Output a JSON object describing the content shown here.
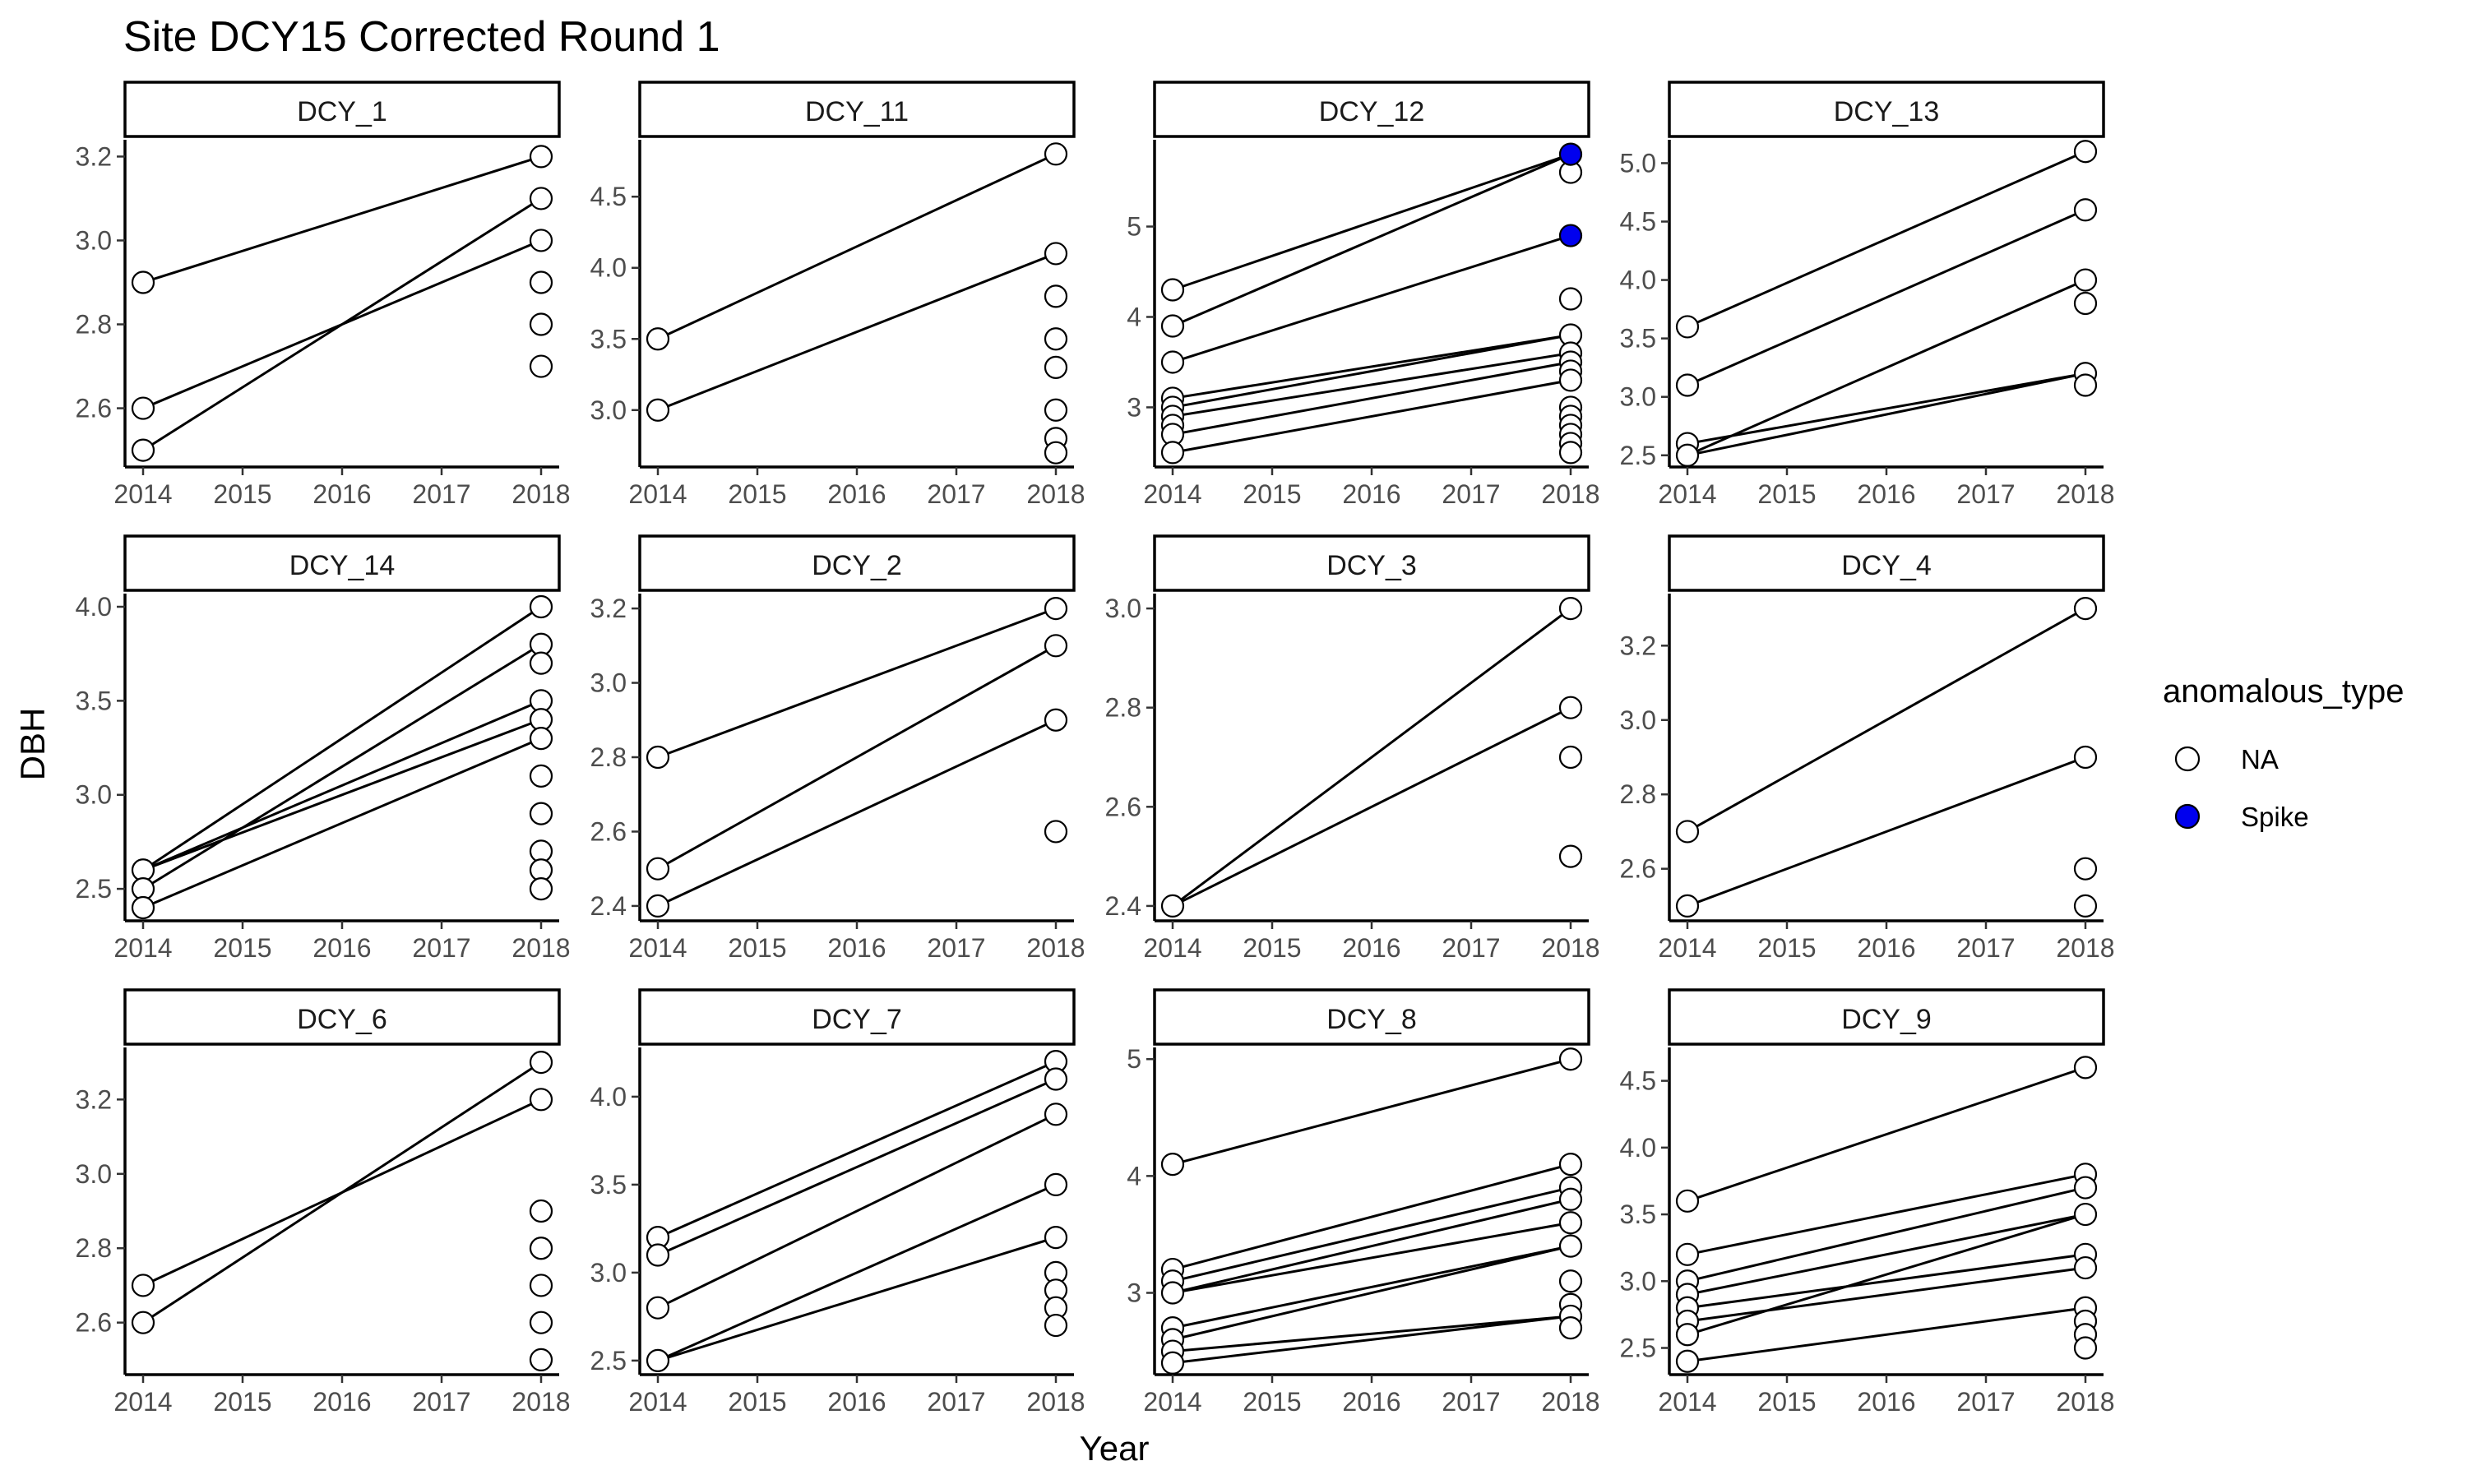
{
  "chart_data": {
    "type": "scatter",
    "title": "Site DCY15 Corrected Round 1",
    "xlabel": "Year",
    "ylabel": "DBH",
    "xlim": [
      2014,
      2018
    ],
    "x_ticks": [
      2014,
      2015,
      2016,
      2017,
      2018
    ],
    "grid": false,
    "legend": {
      "title": "anomalous_type",
      "position": "right",
      "entries": [
        {
          "label": "NA",
          "fill": "#ffffff"
        },
        {
          "label": "Spike",
          "fill": "#0000ee"
        }
      ]
    },
    "panels": [
      {
        "label": "DCY_1",
        "ylim": [
          2.46,
          3.24
        ],
        "y_ticks": [
          2.6,
          2.8,
          3.0,
          3.2
        ],
        "y_tick_labels": [
          "2.6",
          "2.8",
          "3.0",
          "3.2"
        ],
        "points": [
          {
            "x": 2014,
            "y": 2.9
          },
          {
            "x": 2014,
            "y": 2.6
          },
          {
            "x": 2014,
            "y": 2.5
          },
          {
            "x": 2018,
            "y": 3.2
          },
          {
            "x": 2018,
            "y": 3.1
          },
          {
            "x": 2018,
            "y": 3.0
          },
          {
            "x": 2018,
            "y": 2.9
          },
          {
            "x": 2018,
            "y": 2.8
          },
          {
            "x": 2018,
            "y": 2.7
          }
        ],
        "segments": [
          [
            2.9,
            3.2
          ],
          [
            2.6,
            3.0
          ],
          [
            2.5,
            3.1
          ]
        ]
      },
      {
        "label": "DCY_11",
        "ylim": [
          2.6,
          4.9
        ],
        "y_ticks": [
          3.0,
          3.5,
          4.0,
          4.5
        ],
        "y_tick_labels": [
          "3.0",
          "3.5",
          "4.0",
          "4.5"
        ],
        "points": [
          {
            "x": 2014,
            "y": 3.5
          },
          {
            "x": 2014,
            "y": 3.0
          },
          {
            "x": 2018,
            "y": 4.8
          },
          {
            "x": 2018,
            "y": 4.1
          },
          {
            "x": 2018,
            "y": 3.8
          },
          {
            "x": 2018,
            "y": 3.5
          },
          {
            "x": 2018,
            "y": 3.3
          },
          {
            "x": 2018,
            "y": 3.0
          },
          {
            "x": 2018,
            "y": 2.8
          },
          {
            "x": 2018,
            "y": 2.7
          }
        ],
        "segments": [
          [
            3.5,
            4.8
          ],
          [
            3.0,
            4.1
          ]
        ]
      },
      {
        "label": "DCY_12",
        "ylim": [
          2.34,
          5.96
        ],
        "y_ticks": [
          3,
          4,
          5
        ],
        "y_tick_labels": [
          "3",
          "4",
          "5"
        ],
        "points": [
          {
            "x": 2014,
            "y": 4.3
          },
          {
            "x": 2014,
            "y": 3.9
          },
          {
            "x": 2014,
            "y": 3.5
          },
          {
            "x": 2014,
            "y": 3.1
          },
          {
            "x": 2014,
            "y": 3.0
          },
          {
            "x": 2014,
            "y": 2.9
          },
          {
            "x": 2014,
            "y": 2.8
          },
          {
            "x": 2014,
            "y": 2.7
          },
          {
            "x": 2014,
            "y": 2.5
          },
          {
            "x": 2018,
            "y": 5.6
          },
          {
            "x": 2018,
            "y": 4.2
          },
          {
            "x": 2018,
            "y": 3.8
          },
          {
            "x": 2018,
            "y": 3.6
          },
          {
            "x": 2018,
            "y": 3.5
          },
          {
            "x": 2018,
            "y": 3.4
          },
          {
            "x": 2018,
            "y": 3.3
          },
          {
            "x": 2018,
            "y": 3.0
          },
          {
            "x": 2018,
            "y": 2.9
          },
          {
            "x": 2018,
            "y": 2.8
          },
          {
            "x": 2018,
            "y": 2.7
          },
          {
            "x": 2018,
            "y": 2.6
          },
          {
            "x": 2018,
            "y": 2.5
          },
          {
            "x": 2018,
            "y": 5.8,
            "anomalous_type": "Spike"
          },
          {
            "x": 2018,
            "y": 4.9,
            "anomalous_type": "Spike"
          }
        ],
        "segments": [
          [
            4.3,
            5.8
          ],
          [
            3.9,
            5.8
          ],
          [
            3.5,
            4.9
          ],
          [
            3.1,
            3.8
          ],
          [
            3.0,
            3.8
          ],
          [
            2.9,
            3.6
          ],
          [
            2.7,
            3.5
          ],
          [
            2.5,
            3.3
          ]
        ]
      },
      {
        "label": "DCY_13",
        "ylim": [
          2.4,
          5.2
        ],
        "y_ticks": [
          2.5,
          3.0,
          3.5,
          4.0,
          4.5,
          5.0
        ],
        "y_tick_labels": [
          "2.5",
          "3.0",
          "3.5",
          "4.0",
          "4.5",
          "5.0"
        ],
        "points": [
          {
            "x": 2014,
            "y": 3.6
          },
          {
            "x": 2014,
            "y": 3.1
          },
          {
            "x": 2014,
            "y": 2.6
          },
          {
            "x": 2014,
            "y": 2.5
          },
          {
            "x": 2018,
            "y": 5.1
          },
          {
            "x": 2018,
            "y": 4.6
          },
          {
            "x": 2018,
            "y": 4.0
          },
          {
            "x": 2018,
            "y": 3.8
          },
          {
            "x": 2018,
            "y": 3.2
          },
          {
            "x": 2018,
            "y": 3.1
          }
        ],
        "segments": [
          [
            3.6,
            5.1
          ],
          [
            3.1,
            4.6
          ],
          [
            2.5,
            4.0
          ],
          [
            2.6,
            3.2
          ],
          [
            2.5,
            3.2
          ]
        ]
      },
      {
        "label": "DCY_14",
        "ylim": [
          2.33,
          4.07
        ],
        "y_ticks": [
          2.5,
          3.0,
          3.5,
          4.0
        ],
        "y_tick_labels": [
          "2.5",
          "3.0",
          "3.5",
          "4.0"
        ],
        "points": [
          {
            "x": 2014,
            "y": 2.6
          },
          {
            "x": 2014,
            "y": 2.5
          },
          {
            "x": 2014,
            "y": 2.4
          },
          {
            "x": 2018,
            "y": 4.0
          },
          {
            "x": 2018,
            "y": 3.8
          },
          {
            "x": 2018,
            "y": 3.7
          },
          {
            "x": 2018,
            "y": 3.5
          },
          {
            "x": 2018,
            "y": 3.4
          },
          {
            "x": 2018,
            "y": 3.3
          },
          {
            "x": 2018,
            "y": 3.1
          },
          {
            "x": 2018,
            "y": 2.9
          },
          {
            "x": 2018,
            "y": 2.7
          },
          {
            "x": 2018,
            "y": 2.6
          },
          {
            "x": 2018,
            "y": 2.5
          }
        ],
        "segments": [
          [
            2.6,
            4.0
          ],
          [
            2.5,
            3.8
          ],
          [
            2.6,
            3.5
          ],
          [
            2.6,
            3.4
          ],
          [
            2.4,
            3.3
          ]
        ]
      },
      {
        "label": "DCY_2",
        "ylim": [
          2.36,
          3.24
        ],
        "y_ticks": [
          2.4,
          2.6,
          2.8,
          3.0,
          3.2
        ],
        "y_tick_labels": [
          "2.4",
          "2.6",
          "2.8",
          "3.0",
          "3.2"
        ],
        "points": [
          {
            "x": 2014,
            "y": 2.8
          },
          {
            "x": 2014,
            "y": 2.5
          },
          {
            "x": 2014,
            "y": 2.4
          },
          {
            "x": 2018,
            "y": 3.2
          },
          {
            "x": 2018,
            "y": 3.1
          },
          {
            "x": 2018,
            "y": 2.9
          },
          {
            "x": 2018,
            "y": 2.6
          }
        ],
        "segments": [
          [
            2.8,
            3.2
          ],
          [
            2.5,
            3.1
          ],
          [
            2.4,
            2.9
          ]
        ]
      },
      {
        "label": "DCY_3",
        "ylim": [
          2.37,
          3.03
        ],
        "y_ticks": [
          2.4,
          2.6,
          2.8,
          3.0
        ],
        "y_tick_labels": [
          "2.4",
          "2.6",
          "2.8",
          "3.0"
        ],
        "points": [
          {
            "x": 2014,
            "y": 2.4
          },
          {
            "x": 2018,
            "y": 3.0
          },
          {
            "x": 2018,
            "y": 2.8
          },
          {
            "x": 2018,
            "y": 2.7
          },
          {
            "x": 2018,
            "y": 2.5
          }
        ],
        "segments": [
          [
            2.4,
            3.0
          ],
          [
            2.4,
            2.8
          ]
        ]
      },
      {
        "label": "DCY_4",
        "ylim": [
          2.46,
          3.34
        ],
        "y_ticks": [
          2.6,
          2.8,
          3.0,
          3.2
        ],
        "y_tick_labels": [
          "2.6",
          "2.8",
          "3.0",
          "3.2"
        ],
        "points": [
          {
            "x": 2014,
            "y": 2.7
          },
          {
            "x": 2014,
            "y": 2.5
          },
          {
            "x": 2018,
            "y": 3.3
          },
          {
            "x": 2018,
            "y": 2.9
          },
          {
            "x": 2018,
            "y": 2.6
          },
          {
            "x": 2018,
            "y": 2.5
          }
        ],
        "segments": [
          [
            2.7,
            3.3
          ],
          [
            2.5,
            2.9
          ]
        ]
      },
      {
        "label": "DCY_6",
        "ylim": [
          2.46,
          3.34
        ],
        "y_ticks": [
          2.6,
          2.8,
          3.0,
          3.2
        ],
        "y_tick_labels": [
          "2.6",
          "2.8",
          "3.0",
          "3.2"
        ],
        "points": [
          {
            "x": 2014,
            "y": 2.7
          },
          {
            "x": 2014,
            "y": 2.6
          },
          {
            "x": 2018,
            "y": 3.3
          },
          {
            "x": 2018,
            "y": 3.2
          },
          {
            "x": 2018,
            "y": 2.9
          },
          {
            "x": 2018,
            "y": 2.8
          },
          {
            "x": 2018,
            "y": 2.7
          },
          {
            "x": 2018,
            "y": 2.6
          },
          {
            "x": 2018,
            "y": 2.5
          }
        ],
        "segments": [
          [
            2.7,
            3.2
          ],
          [
            2.6,
            3.3
          ]
        ]
      },
      {
        "label": "DCY_7",
        "ylim": [
          2.42,
          4.28
        ],
        "y_ticks": [
          2.5,
          3.0,
          3.5,
          4.0
        ],
        "y_tick_labels": [
          "2.5",
          "3.0",
          "3.5",
          "4.0"
        ],
        "points": [
          {
            "x": 2014,
            "y": 3.2
          },
          {
            "x": 2014,
            "y": 3.1
          },
          {
            "x": 2014,
            "y": 2.8
          },
          {
            "x": 2014,
            "y": 2.5
          },
          {
            "x": 2018,
            "y": 4.2
          },
          {
            "x": 2018,
            "y": 4.1
          },
          {
            "x": 2018,
            "y": 3.9
          },
          {
            "x": 2018,
            "y": 3.5
          },
          {
            "x": 2018,
            "y": 3.2
          },
          {
            "x": 2018,
            "y": 3.0
          },
          {
            "x": 2018,
            "y": 2.9
          },
          {
            "x": 2018,
            "y": 2.8
          },
          {
            "x": 2018,
            "y": 2.7
          }
        ],
        "segments": [
          [
            3.2,
            4.2
          ],
          [
            3.1,
            4.1
          ],
          [
            2.8,
            3.9
          ],
          [
            2.5,
            3.5
          ],
          [
            2.5,
            3.2
          ]
        ]
      },
      {
        "label": "DCY_8",
        "ylim": [
          2.3,
          5.1
        ],
        "y_ticks": [
          3,
          4,
          5
        ],
        "y_tick_labels": [
          "3",
          "4",
          "5"
        ],
        "points": [
          {
            "x": 2014,
            "y": 4.1
          },
          {
            "x": 2014,
            "y": 3.2
          },
          {
            "x": 2014,
            "y": 3.1
          },
          {
            "x": 2014,
            "y": 3.0
          },
          {
            "x": 2014,
            "y": 2.7
          },
          {
            "x": 2014,
            "y": 2.6
          },
          {
            "x": 2014,
            "y": 2.5
          },
          {
            "x": 2014,
            "y": 2.4
          },
          {
            "x": 2018,
            "y": 5.0
          },
          {
            "x": 2018,
            "y": 4.1
          },
          {
            "x": 2018,
            "y": 3.9
          },
          {
            "x": 2018,
            "y": 3.8
          },
          {
            "x": 2018,
            "y": 3.6
          },
          {
            "x": 2018,
            "y": 3.4
          },
          {
            "x": 2018,
            "y": 3.1
          },
          {
            "x": 2018,
            "y": 2.9
          },
          {
            "x": 2018,
            "y": 2.8
          },
          {
            "x": 2018,
            "y": 2.7
          }
        ],
        "segments": [
          [
            4.1,
            5.0
          ],
          [
            3.2,
            4.1
          ],
          [
            3.1,
            3.9
          ],
          [
            3.0,
            3.8
          ],
          [
            3.0,
            3.6
          ],
          [
            2.7,
            3.4
          ],
          [
            2.6,
            3.4
          ],
          [
            2.5,
            2.8
          ],
          [
            2.4,
            2.8
          ]
        ]
      },
      {
        "label": "DCY_9",
        "ylim": [
          2.3,
          4.75
        ],
        "y_ticks": [
          2.5,
          3.0,
          3.5,
          4.0,
          4.5
        ],
        "y_tick_labels": [
          "2.5",
          "3.0",
          "3.5",
          "4.0",
          "4.5"
        ],
        "points": [
          {
            "x": 2014,
            "y": 3.6
          },
          {
            "x": 2014,
            "y": 3.2
          },
          {
            "x": 2014,
            "y": 3.0
          },
          {
            "x": 2014,
            "y": 2.9
          },
          {
            "x": 2014,
            "y": 2.8
          },
          {
            "x": 2014,
            "y": 2.7
          },
          {
            "x": 2014,
            "y": 2.6
          },
          {
            "x": 2014,
            "y": 2.4
          },
          {
            "x": 2018,
            "y": 4.6
          },
          {
            "x": 2018,
            "y": 3.8
          },
          {
            "x": 2018,
            "y": 3.7
          },
          {
            "x": 2018,
            "y": 3.5
          },
          {
            "x": 2018,
            "y": 3.2
          },
          {
            "x": 2018,
            "y": 3.1
          },
          {
            "x": 2018,
            "y": 2.8
          },
          {
            "x": 2018,
            "y": 2.7
          },
          {
            "x": 2018,
            "y": 2.6
          },
          {
            "x": 2018,
            "y": 2.5
          }
        ],
        "segments": [
          [
            3.6,
            4.6
          ],
          [
            3.2,
            3.8
          ],
          [
            3.0,
            3.7
          ],
          [
            2.9,
            3.5
          ],
          [
            2.6,
            3.5
          ],
          [
            2.8,
            3.2
          ],
          [
            2.7,
            3.1
          ],
          [
            2.4,
            2.8
          ]
        ]
      }
    ]
  }
}
